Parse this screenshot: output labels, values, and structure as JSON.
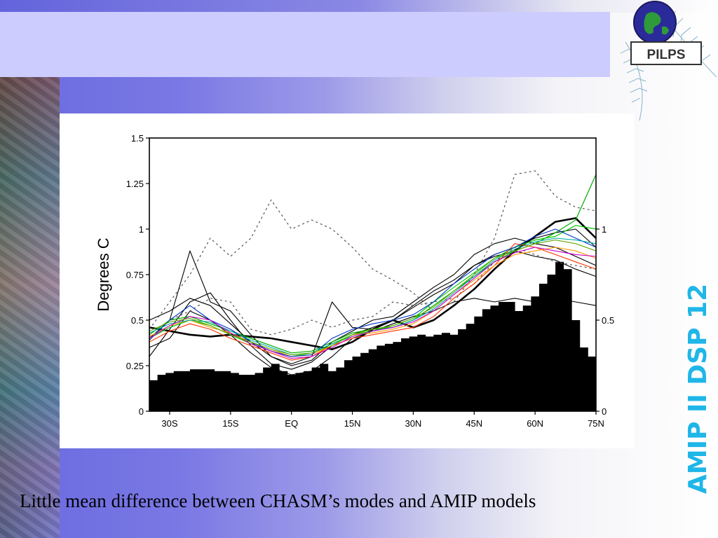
{
  "slide": {
    "side_title": "AMIP II DSP 12",
    "caption": "Little mean difference between CHASM’s modes and AMIP models",
    "logo_text": "PILPS",
    "colors": {
      "title_box": "#ccccff",
      "side_title": "#1fb6e8",
      "background_left": "#6a6ae0"
    }
  },
  "chart_data": {
    "type": "line",
    "title": "",
    "ylabel": "Degrees C",
    "xlabel": "",
    "x_ticks": [
      "30S",
      "15S",
      "EQ",
      "15N",
      "30N",
      "45N",
      "60N",
      "75N"
    ],
    "x_tick_values": [
      -30,
      -15,
      0,
      15,
      30,
      45,
      60,
      75
    ],
    "xlim": [
      -35,
      75
    ],
    "ylim": [
      0,
      1.5
    ],
    "y_ticks": [
      "0",
      "0.25",
      "0.5",
      "0.75",
      "1",
      "1.25",
      "1.5"
    ],
    "y_tick_values": [
      0,
      0.25,
      0.5,
      0.75,
      1,
      1.25,
      1.5
    ],
    "y2lim": [
      0,
      1.5
    ],
    "y2_ticks": [
      "0",
      "0.5",
      "1"
    ],
    "y2_tick_values": [
      0,
      0.5,
      1
    ],
    "grid": false,
    "legend": "none",
    "x": [
      -35,
      -30,
      -25,
      -20,
      -15,
      -10,
      -5,
      0,
      5,
      10,
      15,
      20,
      25,
      30,
      35,
      40,
      45,
      50,
      55,
      60,
      65,
      70,
      75
    ],
    "bars": {
      "name": "",
      "color": "#000000",
      "x": [
        -34,
        -32,
        -30,
        -28,
        -26,
        -24,
        -22,
        -20,
        -18,
        -16,
        -14,
        -12,
        -10,
        -8,
        -6,
        -4,
        -2,
        0,
        2,
        4,
        6,
        8,
        10,
        12,
        14,
        16,
        18,
        20,
        22,
        24,
        26,
        28,
        30,
        32,
        34,
        36,
        38,
        40,
        42,
        44,
        46,
        48,
        50,
        52,
        54,
        56,
        58,
        60,
        62,
        64,
        66,
        68,
        70,
        72,
        74
      ],
      "values": [
        0.17,
        0.2,
        0.21,
        0.22,
        0.22,
        0.23,
        0.23,
        0.23,
        0.22,
        0.22,
        0.21,
        0.2,
        0.2,
        0.21,
        0.24,
        0.26,
        0.22,
        0.2,
        0.21,
        0.22,
        0.24,
        0.26,
        0.22,
        0.24,
        0.28,
        0.3,
        0.32,
        0.34,
        0.36,
        0.37,
        0.38,
        0.4,
        0.41,
        0.42,
        0.41,
        0.42,
        0.43,
        0.42,
        0.45,
        0.48,
        0.52,
        0.56,
        0.58,
        0.6,
        0.6,
        0.55,
        0.58,
        0.63,
        0.7,
        0.75,
        0.82,
        0.78,
        0.5,
        0.35,
        0.3
      ]
    },
    "series": [
      {
        "name": "",
        "color": "#000000",
        "width": 2.6,
        "dash": "",
        "values": [
          0.46,
          0.44,
          0.42,
          0.41,
          0.42,
          0.41,
          0.4,
          0.38,
          0.36,
          0.34,
          0.38,
          0.45,
          0.5,
          0.46,
          0.5,
          0.58,
          0.67,
          0.78,
          0.88,
          0.96,
          1.04,
          1.06,
          0.95
        ]
      },
      {
        "name": "",
        "color": "#000000",
        "width": 1.1,
        "dash": "",
        "values": [
          0.4,
          0.5,
          0.88,
          0.6,
          0.55,
          0.42,
          0.3,
          0.25,
          0.28,
          0.38,
          0.44,
          0.5,
          0.52,
          0.6,
          0.68,
          0.75,
          0.86,
          0.92,
          0.95,
          0.92,
          0.9,
          0.85,
          0.8
        ]
      },
      {
        "name": "",
        "color": "#000000",
        "width": 1.1,
        "dash": "",
        "values": [
          0.3,
          0.45,
          0.6,
          0.65,
          0.5,
          0.36,
          0.26,
          0.23,
          0.27,
          0.36,
          0.42,
          0.46,
          0.5,
          0.58,
          0.66,
          0.72,
          0.8,
          0.85,
          0.88,
          0.85,
          0.83,
          0.78,
          0.74
        ]
      },
      {
        "name": "",
        "color": "#000000",
        "width": 1.1,
        "dash": "",
        "values": [
          0.35,
          0.4,
          0.55,
          0.5,
          0.42,
          0.32,
          0.24,
          0.2,
          0.22,
          0.3,
          0.4,
          0.44,
          0.48,
          0.52,
          0.55,
          0.6,
          0.62,
          0.6,
          0.62,
          0.6,
          0.62,
          0.6,
          0.58
        ]
      },
      {
        "name": "",
        "color": "#000000",
        "width": 1.1,
        "dash": "",
        "values": [
          0.5,
          0.55,
          0.62,
          0.58,
          0.48,
          0.38,
          0.3,
          0.26,
          0.3,
          0.6,
          0.46,
          0.45,
          0.5,
          0.57,
          0.64,
          0.7,
          0.8,
          0.86,
          0.9,
          0.95,
          0.98,
          1.0,
          0.9
        ]
      },
      {
        "name": "",
        "color": "#555555",
        "width": 1.2,
        "dash": "3,4",
        "values": [
          0.45,
          0.6,
          0.75,
          0.95,
          0.85,
          0.95,
          1.16,
          1.0,
          1.05,
          1.0,
          0.9,
          0.78,
          0.72,
          0.65,
          0.55,
          0.6,
          0.75,
          0.95,
          1.3,
          1.32,
          1.18,
          1.12,
          1.1
        ]
      },
      {
        "name": "",
        "color": "#555555",
        "width": 1.2,
        "dash": "3,4",
        "values": [
          0.4,
          0.5,
          0.55,
          0.62,
          0.6,
          0.45,
          0.42,
          0.45,
          0.5,
          0.46,
          0.5,
          0.52,
          0.6,
          0.58,
          0.6,
          0.62,
          0.7,
          0.82,
          0.9,
          0.86,
          0.82,
          0.8,
          0.78
        ]
      },
      {
        "name": "",
        "color": "#00aa00",
        "width": 1.2,
        "dash": "",
        "values": [
          0.42,
          0.5,
          0.52,
          0.48,
          0.44,
          0.4,
          0.36,
          0.32,
          0.33,
          0.38,
          0.43,
          0.45,
          0.46,
          0.5,
          0.58,
          0.66,
          0.74,
          0.82,
          0.88,
          0.92,
          0.98,
          1.05,
          1.3
        ]
      },
      {
        "name": "",
        "color": "#00cc00",
        "width": 1.2,
        "dash": "",
        "values": [
          0.4,
          0.46,
          0.5,
          0.47,
          0.42,
          0.37,
          0.33,
          0.3,
          0.32,
          0.37,
          0.42,
          0.44,
          0.47,
          0.51,
          0.6,
          0.68,
          0.76,
          0.84,
          0.9,
          0.94,
          0.96,
          1.02,
          1.0
        ]
      },
      {
        "name": "",
        "color": "#ff3300",
        "width": 1.1,
        "dash": "",
        "values": [
          0.38,
          0.44,
          0.48,
          0.45,
          0.4,
          0.36,
          0.32,
          0.28,
          0.3,
          0.36,
          0.4,
          0.42,
          0.44,
          0.46,
          0.52,
          0.62,
          0.7,
          0.8,
          0.92,
          0.9,
          0.86,
          0.82,
          0.78
        ]
      },
      {
        "name": "",
        "color": "#ff9900",
        "width": 1.1,
        "dash": "",
        "values": [
          0.41,
          0.47,
          0.5,
          0.46,
          0.43,
          0.38,
          0.34,
          0.3,
          0.31,
          0.36,
          0.42,
          0.43,
          0.45,
          0.48,
          0.55,
          0.64,
          0.72,
          0.8,
          0.86,
          0.88,
          0.9,
          0.88,
          0.84
        ]
      },
      {
        "name": "",
        "color": "#0033cc",
        "width": 1.1,
        "dash": "",
        "values": [
          0.39,
          0.5,
          0.58,
          0.5,
          0.45,
          0.38,
          0.33,
          0.3,
          0.31,
          0.4,
          0.45,
          0.48,
          0.5,
          0.53,
          0.6,
          0.7,
          0.78,
          0.86,
          0.9,
          0.96,
          1.0,
          0.95,
          0.9
        ]
      },
      {
        "name": "",
        "color": "#00aaaa",
        "width": 1.1,
        "dash": "",
        "values": [
          0.43,
          0.48,
          0.5,
          0.49,
          0.44,
          0.39,
          0.35,
          0.31,
          0.32,
          0.37,
          0.41,
          0.44,
          0.46,
          0.5,
          0.56,
          0.65,
          0.74,
          0.83,
          0.89,
          0.93,
          0.95,
          0.94,
          0.92
        ]
      },
      {
        "name": "",
        "color": "#cc00cc",
        "width": 1.1,
        "dash": "",
        "values": [
          0.4,
          0.47,
          0.52,
          0.5,
          0.43,
          0.37,
          0.33,
          0.29,
          0.3,
          0.35,
          0.41,
          0.44,
          0.46,
          0.49,
          0.55,
          0.64,
          0.73,
          0.82,
          0.87,
          0.9,
          0.88,
          0.86,
          0.85
        ]
      },
      {
        "name": "",
        "color": "#66aa00",
        "width": 1.1,
        "dash": "",
        "values": [
          0.44,
          0.49,
          0.51,
          0.47,
          0.42,
          0.38,
          0.34,
          0.31,
          0.32,
          0.36,
          0.42,
          0.45,
          0.47,
          0.51,
          0.57,
          0.66,
          0.75,
          0.84,
          0.88,
          0.92,
          0.94,
          0.92,
          0.88
        ]
      }
    ]
  }
}
